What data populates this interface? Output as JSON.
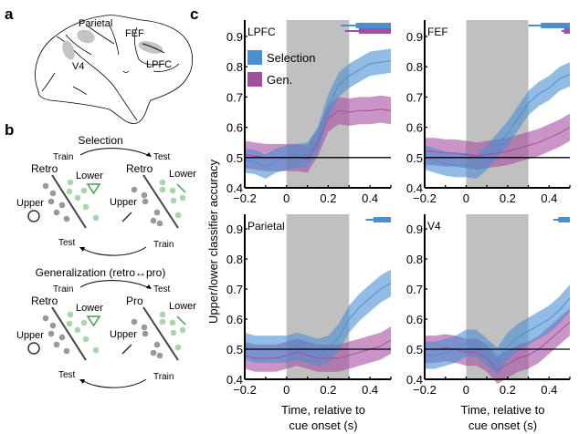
{
  "panels": {
    "a": {
      "label": "a",
      "regions": [
        "Parietal",
        "FEF",
        "V4",
        "LPFC"
      ]
    },
    "b": {
      "label": "b",
      "selection": {
        "title": "Selection",
        "train": "Train",
        "test": "Test",
        "left_cond": "Retro",
        "right_cond": "Retro",
        "upper": "Upper",
        "lower": "Lower",
        "test_bottom": "Test",
        "train_bottom": "Train"
      },
      "generalization": {
        "title": "Generalization (retro↔pro)",
        "train": "Train",
        "test": "Test",
        "left_cond": "Retro",
        "right_cond": "Pro",
        "upper": "Upper",
        "lower": "Lower",
        "test_bottom": "Test",
        "train_bottom": "Train"
      }
    },
    "c": {
      "label": "c"
    }
  },
  "colors": {
    "selection": "#4a8fd1",
    "gen": "#a34fa0",
    "retro": "#4a8fd1",
    "pro": "#f0922b",
    "lower": "#4a9a5a",
    "region": "#c4c4c4",
    "cue": "#c0c0c0"
  },
  "chart_data": {
    "type": "line",
    "ylabel": "Upper/lower classifier accuracy",
    "xlabel": "Time, relative to cue onset (s)",
    "xlabel_lines": [
      "Time, relative to",
      "cue onset (s)"
    ],
    "xlim": [
      -0.2,
      0.5
    ],
    "ylim": [
      0.4,
      0.95
    ],
    "xticks": [
      -0.2,
      0,
      0.2,
      0.4
    ],
    "xtick_labels": [
      "−0.2",
      "0",
      "0.2",
      "0.4"
    ],
    "yticks": [
      0.4,
      0.5,
      0.6,
      0.7,
      0.8,
      0.9
    ],
    "ytick_labels": [
      "0.4",
      "0.5",
      "0.6",
      "0.7",
      "0.8",
      "0.9"
    ],
    "chance": 0.5,
    "cue_window": [
      0,
      0.3
    ],
    "legend": [
      "Selection",
      "Gen."
    ],
    "legend_position": "upper-left",
    "x": [
      -0.2,
      -0.15,
      -0.1,
      -0.05,
      0,
      0.05,
      0.1,
      0.15,
      0.2,
      0.25,
      0.3,
      0.35,
      0.4,
      0.45,
      0.5
    ],
    "subplots": [
      {
        "title": "LPFC",
        "series": [
          {
            "name": "Selection",
            "mean": [
              0.49,
              0.485,
              0.47,
              0.49,
              0.5,
              0.505,
              0.51,
              0.56,
              0.67,
              0.74,
              0.77,
              0.79,
              0.81,
              0.815,
              0.82
            ],
            "sem": 0.04
          },
          {
            "name": "Gen.",
            "mean": [
              0.51,
              0.505,
              0.5,
              0.5,
              0.5,
              0.5,
              0.495,
              0.55,
              0.63,
              0.655,
              0.65,
              0.655,
              0.655,
              0.66,
              0.655
            ],
            "sem": 0.045
          }
        ],
        "sig_bars": [
          {
            "series": "Selection",
            "from": 0.26,
            "to": 0.5
          },
          {
            "series": "Gen.",
            "from": 0.28,
            "to": 0.5
          }
        ]
      },
      {
        "title": "FEF",
        "series": [
          {
            "name": "Selection",
            "mean": [
              0.5,
              0.49,
              0.48,
              0.475,
              0.475,
              0.47,
              0.5,
              0.54,
              0.58,
              0.63,
              0.68,
              0.71,
              0.73,
              0.76,
              0.775
            ],
            "sem": 0.04
          },
          {
            "name": "Gen.",
            "mean": [
              0.52,
              0.52,
              0.515,
              0.515,
              0.51,
              0.505,
              0.51,
              0.515,
              0.52,
              0.53,
              0.54,
              0.55,
              0.565,
              0.58,
              0.6
            ],
            "sem": 0.045
          }
        ],
        "sig_bars": [
          {
            "series": "Selection",
            "from": 0.3,
            "to": 0.5
          },
          {
            "series": "Gen.",
            "from": 0.46,
            "to": 0.5
          }
        ]
      },
      {
        "title": "Parietal",
        "series": [
          {
            "name": "Selection",
            "mean": [
              0.51,
              0.5,
              0.5,
              0.5,
              0.5,
              0.51,
              0.5,
              0.49,
              0.5,
              0.54,
              0.6,
              0.64,
              0.67,
              0.7,
              0.72
            ],
            "sem": 0.045
          },
          {
            "name": "Gen.",
            "mean": [
              0.48,
              0.47,
              0.47,
              0.47,
              0.48,
              0.49,
              0.48,
              0.47,
              0.47,
              0.47,
              0.48,
              0.49,
              0.5,
              0.51,
              0.53
            ],
            "sem": 0.045
          }
        ],
        "sig_bars": [
          {
            "series": "Selection",
            "from": 0.38,
            "to": 0.5
          }
        ]
      },
      {
        "title": "V4",
        "series": [
          {
            "name": "Selection",
            "mean": [
              0.48,
              0.48,
              0.49,
              0.5,
              0.52,
              0.52,
              0.49,
              0.46,
              0.51,
              0.54,
              0.56,
              0.58,
              0.6,
              0.63,
              0.67
            ],
            "sem": 0.045
          },
          {
            "name": "Gen.",
            "mean": [
              0.5,
              0.5,
              0.505,
              0.5,
              0.49,
              0.49,
              0.47,
              0.43,
              0.45,
              0.47,
              0.48,
              0.5,
              0.53,
              0.56,
              0.59
            ],
            "sem": 0.045
          }
        ],
        "sig_bars": [
          {
            "series": "Selection",
            "from": 0.42,
            "to": 0.5
          }
        ]
      }
    ]
  }
}
